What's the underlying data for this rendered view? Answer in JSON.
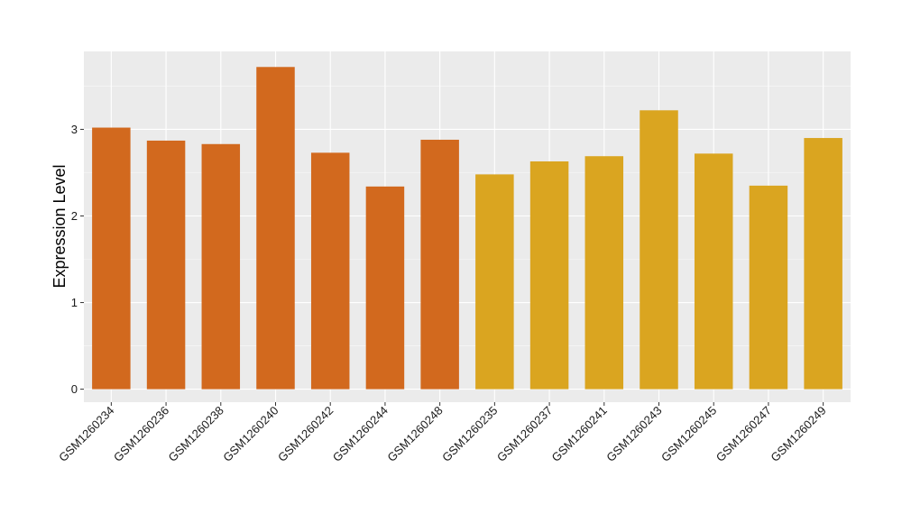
{
  "chart_data": {
    "type": "bar",
    "title": "",
    "xlabel": "",
    "ylabel": "Expression Level",
    "ylim": [
      -0.15,
      3.9
    ],
    "yticks": [
      0,
      1,
      2,
      3
    ],
    "grid": true,
    "legend": "none",
    "panel_background": "#ebebeb",
    "grid_color": "#ffffff",
    "categories": [
      "GSM1260234",
      "GSM1260236",
      "GSM1260238",
      "GSM1260240",
      "GSM1260242",
      "GSM1260244",
      "GSM1260248",
      "GSM1260235",
      "GSM1260237",
      "GSM1260241",
      "GSM1260243",
      "GSM1260245",
      "GSM1260247",
      "GSM1260249"
    ],
    "values": [
      3.02,
      2.87,
      2.83,
      3.72,
      2.73,
      2.34,
      2.88,
      2.48,
      2.63,
      2.69,
      3.22,
      2.72,
      2.35,
      2.9
    ],
    "colors": [
      "#d2691e",
      "#d2691e",
      "#d2691e",
      "#d2691e",
      "#d2691e",
      "#d2691e",
      "#d2691e",
      "#daa520",
      "#daa520",
      "#daa520",
      "#daa520",
      "#daa520",
      "#daa520",
      "#daa520"
    ]
  }
}
